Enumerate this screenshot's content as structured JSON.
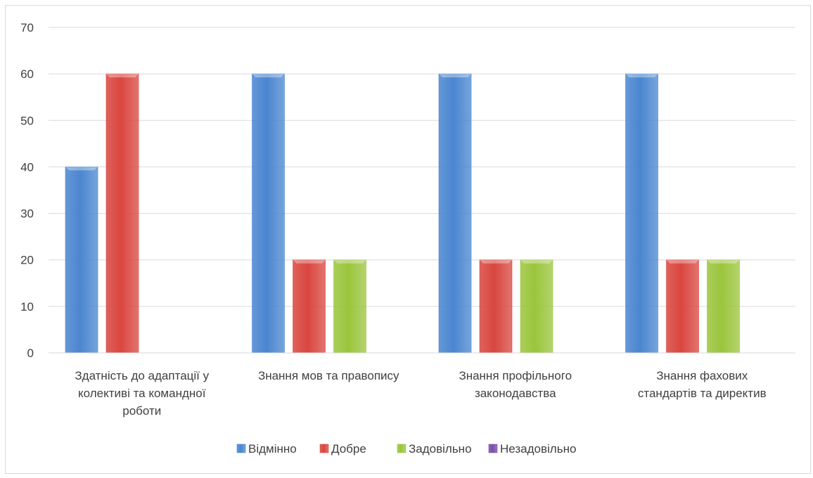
{
  "chart_data": {
    "type": "bar",
    "categories": [
      [
        "Здатність до адаптації у",
        "колективі та командної",
        "роботи"
      ],
      [
        "Знання мов та правопису"
      ],
      [
        "Знання профільного",
        "законодавства"
      ],
      [
        "Знання фахових",
        "стандартів та директив"
      ]
    ],
    "series": [
      {
        "name": "Відмінно",
        "color": "#4a86d0",
        "values": [
          40,
          60,
          60,
          60
        ]
      },
      {
        "name": "Добре",
        "color": "#d9463f",
        "values": [
          60,
          20,
          20,
          20
        ]
      },
      {
        "name": "Задовільно",
        "color": "#9bc53c",
        "values": [
          0,
          20,
          20,
          20
        ]
      },
      {
        "name": "Незадовільно",
        "color": "#7a4ea8",
        "values": [
          0,
          0,
          0,
          0
        ]
      }
    ],
    "y_ticks": [
      "0",
      "10",
      "20",
      "30",
      "40",
      "50",
      "60",
      "70"
    ],
    "ylim": [
      0,
      70
    ],
    "grid": true,
    "legend_position": "bottom"
  }
}
